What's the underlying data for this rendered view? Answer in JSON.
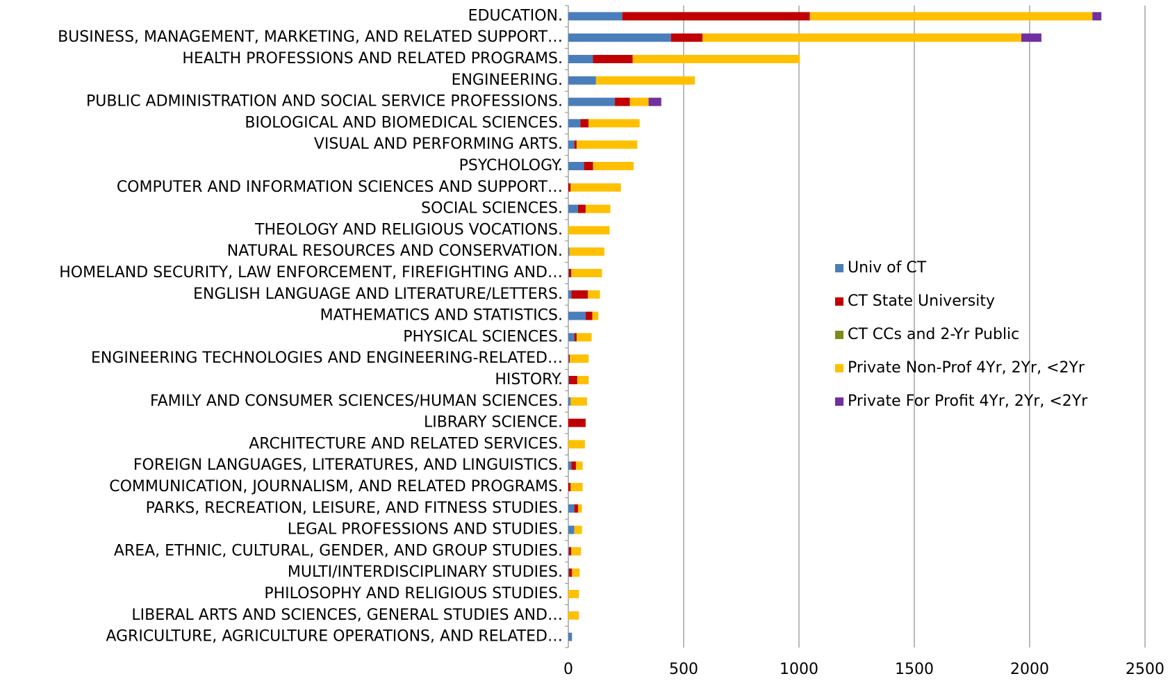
{
  "chart_data": {
    "type": "stacked_barh",
    "categories": [
      "EDUCATION.",
      "BUSINESS, MANAGEMENT, MARKETING, AND RELATED SUPPORT…",
      "HEALTH PROFESSIONS AND RELATED PROGRAMS.",
      "ENGINEERING.",
      "PUBLIC ADMINISTRATION AND SOCIAL SERVICE PROFESSIONS.",
      "BIOLOGICAL AND BIOMEDICAL SCIENCES.",
      "VISUAL AND PERFORMING ARTS.",
      "PSYCHOLOGY.",
      "COMPUTER AND INFORMATION SCIENCES AND SUPPORT…",
      "SOCIAL SCIENCES.",
      "THEOLOGY AND RELIGIOUS VOCATIONS.",
      "NATURAL RESOURCES AND CONSERVATION.",
      "HOMELAND SECURITY, LAW ENFORCEMENT, FIREFIGHTING AND…",
      "ENGLISH LANGUAGE AND LITERATURE/LETTERS.",
      "MATHEMATICS AND STATISTICS.",
      "PHYSICAL SCIENCES.",
      "ENGINEERING TECHNOLOGIES AND ENGINEERING-RELATED…",
      "HISTORY.",
      "FAMILY AND CONSUMER SCIENCES/HUMAN SCIENCES.",
      "LIBRARY SCIENCE.",
      "ARCHITECTURE AND RELATED SERVICES.",
      "FOREIGN LANGUAGES, LITERATURES, AND LINGUISTICS.",
      "COMMUNICATION, JOURNALISM, AND RELATED PROGRAMS.",
      "PARKS, RECREATION, LEISURE, AND FITNESS STUDIES.",
      "LEGAL PROFESSIONS AND STUDIES.",
      "AREA, ETHNIC, CULTURAL, GENDER, AND GROUP STUDIES.",
      "MULTI/INTERDISCIPLINARY STUDIES.",
      "PHILOSOPHY AND RELIGIOUS STUDIES.",
      "LIBERAL ARTS AND SCIENCES, GENERAL STUDIES AND…",
      "AGRICULTURE, AGRICULTURE OPERATIONS, AND RELATED…"
    ],
    "series": [
      {
        "name": "Univ of CT",
        "color": "#4a7ebb",
        "values": [
          234,
          445,
          107,
          120,
          202,
          52,
          26,
          68,
          0,
          42,
          0,
          5,
          3,
          13,
          75,
          26,
          3,
          3,
          10,
          0,
          0,
          13,
          0,
          26,
          26,
          3,
          3,
          0,
          0,
          16
        ]
      },
      {
        "name": "CT State University",
        "color": "#c00000",
        "values": [
          813,
          137,
          172,
          0,
          65,
          36,
          10,
          39,
          10,
          33,
          0,
          0,
          10,
          72,
          29,
          10,
          3,
          36,
          0,
          75,
          0,
          20,
          10,
          16,
          0,
          10,
          13,
          0,
          0,
          0
        ]
      },
      {
        "name": "CT CCs and 2-Yr Public",
        "color": "#7f8a1a",
        "values": [
          0,
          0,
          0,
          0,
          0,
          0,
          0,
          0,
          0,
          0,
          0,
          0,
          0,
          0,
          0,
          0,
          0,
          0,
          0,
          0,
          0,
          0,
          0,
          0,
          0,
          0,
          0,
          0,
          0,
          0
        ]
      },
      {
        "name": "Private Non-Prof 4Yr, 2Yr, <2Yr",
        "color": "#ffc000",
        "values": [
          1225,
          1382,
          725,
          429,
          81,
          221,
          263,
          176,
          218,
          107,
          179,
          151,
          133,
          52,
          26,
          65,
          82,
          49,
          71,
          0,
          72,
          29,
          52,
          17,
          33,
          42,
          33,
          46,
          46,
          0
        ]
      },
      {
        "name": "Private For Profit 4Yr, 2Yr, <2Yr",
        "color": "#7030a0",
        "values": [
          39,
          87,
          0,
          0,
          55,
          0,
          0,
          0,
          0,
          0,
          0,
          0,
          0,
          0,
          0,
          0,
          0,
          0,
          0,
          0,
          0,
          0,
          0,
          0,
          0,
          0,
          0,
          0,
          0,
          0
        ]
      }
    ],
    "xlim": [
      0,
      2500
    ],
    "xticks": [
      0,
      500,
      1000,
      1500,
      2000,
      2500
    ],
    "grid": true
  }
}
